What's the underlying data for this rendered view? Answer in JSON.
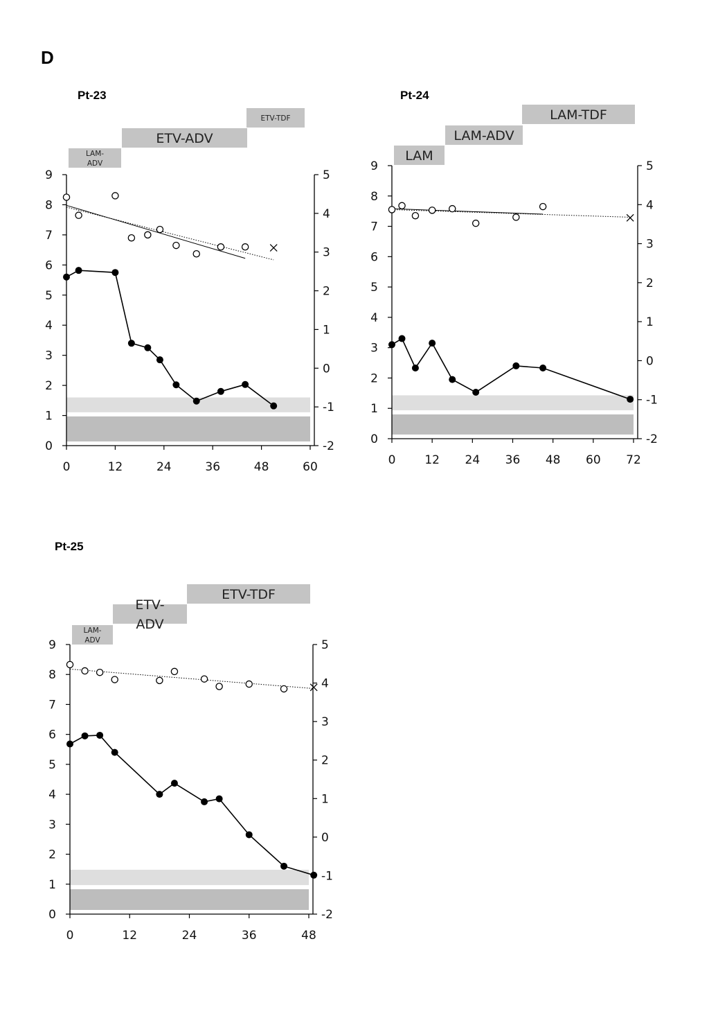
{
  "panel_label": "D",
  "chart_data": [
    {
      "type": "line",
      "title": "Pt-23",
      "x_ticks": [
        "0",
        "12",
        "24",
        "36",
        "48",
        "60"
      ],
      "xlim": [
        0,
        60
      ],
      "y_left_ticks": [
        "0",
        "1",
        "2",
        "3",
        "4",
        "5",
        "6",
        "7",
        "8",
        "9"
      ],
      "ylim_left": [
        0,
        9
      ],
      "y_right_ticks": [
        "-2",
        "-1",
        "0",
        "1",
        "2",
        "3",
        "4",
        "5"
      ],
      "ylim_right": [
        -2,
        5
      ],
      "treatments": [
        {
          "label": "LAM-ADV",
          "start": 0.5,
          "end": 13.5
        },
        {
          "label": "ETV-ADV",
          "start": 13.5,
          "end": 44
        },
        {
          "label": "ETV-TDF",
          "start": 44,
          "end": 58
        }
      ],
      "bands": [
        {
          "y0": 0,
          "y1": 0.97,
          "color": "#bdbdbd"
        },
        {
          "y0": 0.97,
          "y1": 1.6,
          "color": "#dedede"
        }
      ],
      "series": [
        {
          "marker": "filled",
          "axis": "left",
          "connected": true,
          "x": [
            0,
            3,
            12,
            16,
            20,
            23,
            27,
            32,
            38,
            44,
            51
          ],
          "y": [
            5.6,
            5.82,
            5.75,
            3.4,
            3.25,
            2.85,
            2.02,
            1.48,
            1.8,
            2.03,
            1.32
          ]
        },
        {
          "marker": "open",
          "axis": "left",
          "connected": false,
          "x": [
            0,
            3,
            12,
            16,
            20,
            23,
            27,
            32,
            38,
            44
          ],
          "y": [
            8.25,
            7.65,
            8.3,
            6.9,
            7.0,
            7.18,
            6.65,
            6.37,
            6.6,
            6.6
          ]
        },
        {
          "marker": "cross",
          "axis": "left",
          "connected": false,
          "x": [
            51
          ],
          "y": [
            6.57
          ]
        }
      ],
      "trendlines": [
        {
          "style": "solid",
          "x": [
            0,
            44
          ],
          "y": [
            7.98,
            6.22
          ]
        },
        {
          "style": "dotted",
          "x": [
            0,
            51
          ],
          "y": [
            7.92,
            6.17
          ]
        }
      ]
    },
    {
      "type": "line",
      "title": "Pt-24",
      "x_ticks": [
        "0",
        "12",
        "24",
        "36",
        "48",
        "60",
        "72"
      ],
      "xlim": [
        0,
        72
      ],
      "y_left_ticks": [
        "0",
        "1",
        "2",
        "3",
        "4",
        "5",
        "6",
        "7",
        "8",
        "9"
      ],
      "ylim_left": [
        0,
        9
      ],
      "y_right_ticks": [
        "-2",
        "-1",
        "0",
        "1",
        "2",
        "3",
        "4",
        "5"
      ],
      "ylim_right": [
        -2,
        5
      ],
      "treatments": [
        {
          "label": "LAM",
          "start": 0.5,
          "end": 16
        },
        {
          "label": "LAM-ADV",
          "start": 16,
          "end": 39
        },
        {
          "label": "LAM-TDF",
          "start": 39,
          "end": 72.5
        }
      ],
      "bands": [
        {
          "y0": 0,
          "y1": 0.8,
          "color": "#bdbdbd"
        },
        {
          "y0": 0.8,
          "y1": 1.43,
          "color": "#dedede"
        }
      ],
      "series": [
        {
          "marker": "filled",
          "axis": "left",
          "connected": true,
          "x": [
            0,
            3,
            7,
            12,
            18,
            25,
            37,
            45,
            71
          ],
          "y": [
            3.1,
            3.3,
            2.33,
            3.15,
            1.95,
            1.53,
            2.4,
            2.33,
            1.3
          ]
        },
        {
          "marker": "open",
          "axis": "left",
          "connected": false,
          "x": [
            0,
            3,
            7,
            12,
            18,
            25,
            37,
            45
          ],
          "y": [
            7.55,
            7.68,
            7.35,
            7.53,
            7.58,
            7.1,
            7.3,
            7.65
          ]
        },
        {
          "marker": "cross",
          "axis": "left",
          "connected": false,
          "x": [
            71
          ],
          "y": [
            7.28
          ]
        }
      ],
      "trendlines": [
        {
          "style": "solid",
          "x": [
            0,
            45
          ],
          "y": [
            7.58,
            7.4
          ]
        },
        {
          "style": "dotted",
          "x": [
            0,
            71
          ],
          "y": [
            7.55,
            7.3
          ]
        }
      ]
    },
    {
      "type": "line",
      "title": "Pt-25",
      "x_ticks": [
        "0",
        "12",
        "24",
        "36",
        "48"
      ],
      "xlim": [
        0,
        48
      ],
      "y_left_ticks": [
        "0",
        "1",
        "2",
        "3",
        "4",
        "5",
        "6",
        "7",
        "8",
        "9"
      ],
      "ylim_left": [
        0,
        9
      ],
      "y_right_ticks": [
        "-2",
        "-1",
        "0",
        "1",
        "2",
        "3",
        "4",
        "5"
      ],
      "ylim_right": [
        -2,
        5
      ],
      "treatments": [
        {
          "label": "LAM-ADV",
          "start": 0.5,
          "end": 8.8
        },
        {
          "label": "ETV-ADV",
          "start": 8.8,
          "end": 24
        },
        {
          "label": "ETV-TDF",
          "start": 24,
          "end": 49.5
        }
      ],
      "bands": [
        {
          "y0": 0,
          "y1": 0.83,
          "color": "#bdbdbd"
        },
        {
          "y0": 0.83,
          "y1": 1.48,
          "color": "#dedede"
        }
      ],
      "series": [
        {
          "marker": "filled",
          "axis": "left",
          "connected": true,
          "x": [
            0,
            3,
            6,
            9,
            18,
            21,
            27,
            30,
            36,
            43,
            49
          ],
          "y": [
            5.68,
            5.95,
            5.97,
            5.4,
            4.0,
            4.37,
            3.75,
            3.85,
            2.65,
            1.6,
            1.3
          ]
        },
        {
          "marker": "open",
          "axis": "left",
          "connected": false,
          "x": [
            0,
            3,
            6,
            9,
            18,
            21,
            27,
            30,
            36,
            43
          ],
          "y": [
            8.33,
            8.12,
            8.07,
            7.83,
            7.8,
            8.1,
            7.85,
            7.6,
            7.68,
            7.52
          ]
        },
        {
          "marker": "cross",
          "axis": "left",
          "connected": false,
          "x": [
            49
          ],
          "y": [
            7.57
          ]
        }
      ],
      "trendlines": [
        {
          "style": "dotted",
          "x": [
            0,
            49
          ],
          "y": [
            8.18,
            7.53
          ]
        }
      ]
    }
  ]
}
